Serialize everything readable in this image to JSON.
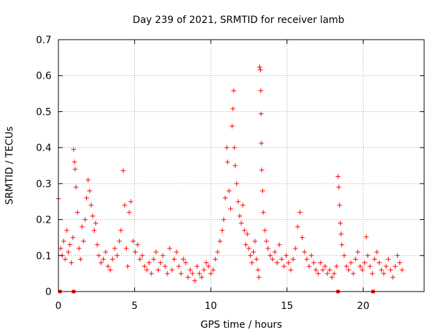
{
  "chart_data": {
    "type": "scatter",
    "title": "Day 239 of 2021, SRMTID for receiver lamb",
    "xlabel": "GPS time / hours",
    "ylabel": "SRMTID / TECUs",
    "xlim": [
      0,
      24
    ],
    "ylim": [
      0,
      0.7
    ],
    "xticks": [
      0,
      5,
      10,
      15,
      20
    ],
    "xtick_labels": [
      "0",
      "5",
      "10",
      "15",
      "20"
    ],
    "yticks": [
      0,
      0.1,
      0.2,
      0.3,
      0.4,
      0.5,
      0.6,
      0.7
    ],
    "ytick_labels": [
      "0",
      "0.1",
      "0.2",
      "0.3",
      "0.4",
      "0.5",
      "0.6",
      "0.7"
    ],
    "grid": true,
    "marker": "+",
    "color": "#ff0000",
    "series": [
      {
        "name": "SRMTID",
        "points": [
          [
            0.0,
            0.258
          ],
          [
            0.15,
            0.12
          ],
          [
            0.25,
            0.1
          ],
          [
            0.35,
            0.14
          ],
          [
            0.45,
            0.09
          ],
          [
            0.55,
            0.17
          ],
          [
            0.65,
            0.11
          ],
          [
            0.75,
            0.13
          ],
          [
            0.85,
            0.08
          ],
          [
            0.95,
            0.15
          ],
          [
            1.0,
            0.395
          ],
          [
            1.05,
            0.36
          ],
          [
            1.1,
            0.34
          ],
          [
            1.15,
            0.29
          ],
          [
            1.25,
            0.22
          ],
          [
            1.35,
            0.12
          ],
          [
            1.45,
            0.09
          ],
          [
            1.55,
            0.18
          ],
          [
            1.65,
            0.14
          ],
          [
            1.75,
            0.2
          ],
          [
            1.85,
            0.26
          ],
          [
            1.95,
            0.31
          ],
          [
            2.05,
            0.28
          ],
          [
            2.15,
            0.24
          ],
          [
            2.25,
            0.21
          ],
          [
            2.35,
            0.17
          ],
          [
            2.45,
            0.19
          ],
          [
            2.55,
            0.13
          ],
          [
            2.65,
            0.1
          ],
          [
            2.8,
            0.08
          ],
          [
            2.95,
            0.09
          ],
          [
            3.1,
            0.11
          ],
          [
            3.25,
            0.07
          ],
          [
            3.4,
            0.06
          ],
          [
            3.55,
            0.09
          ],
          [
            3.7,
            0.12
          ],
          [
            3.85,
            0.1
          ],
          [
            4.0,
            0.14
          ],
          [
            4.1,
            0.17
          ],
          [
            4.25,
            0.336
          ],
          [
            4.35,
            0.24
          ],
          [
            4.45,
            0.12
          ],
          [
            4.55,
            0.07
          ],
          [
            4.65,
            0.22
          ],
          [
            4.75,
            0.25
          ],
          [
            4.9,
            0.14
          ],
          [
            5.05,
            0.11
          ],
          [
            5.2,
            0.13
          ],
          [
            5.35,
            0.09
          ],
          [
            5.5,
            0.1
          ],
          [
            5.65,
            0.07
          ],
          [
            5.8,
            0.06
          ],
          [
            5.95,
            0.08
          ],
          [
            6.1,
            0.05
          ],
          [
            6.25,
            0.09
          ],
          [
            6.4,
            0.11
          ],
          [
            6.55,
            0.06
          ],
          [
            6.7,
            0.08
          ],
          [
            6.85,
            0.1
          ],
          [
            7.0,
            0.07
          ],
          [
            7.15,
            0.05
          ],
          [
            7.3,
            0.12
          ],
          [
            7.45,
            0.06
          ],
          [
            7.6,
            0.09
          ],
          [
            7.75,
            0.11
          ],
          [
            7.9,
            0.07
          ],
          [
            8.05,
            0.05
          ],
          [
            8.2,
            0.09
          ],
          [
            8.35,
            0.08
          ],
          [
            8.5,
            0.04
          ],
          [
            8.65,
            0.06
          ],
          [
            8.8,
            0.05
          ],
          [
            8.95,
            0.03
          ],
          [
            9.1,
            0.07
          ],
          [
            9.25,
            0.05
          ],
          [
            9.4,
            0.04
          ],
          [
            9.55,
            0.06
          ],
          [
            9.7,
            0.08
          ],
          [
            9.85,
            0.07
          ],
          [
            10.0,
            0.05
          ],
          [
            10.15,
            0.06
          ],
          [
            10.3,
            0.09
          ],
          [
            10.45,
            0.11
          ],
          [
            10.6,
            0.14
          ],
          [
            10.75,
            0.17
          ],
          [
            10.85,
            0.2
          ],
          [
            10.95,
            0.26
          ],
          [
            11.05,
            0.4
          ],
          [
            11.1,
            0.36
          ],
          [
            11.2,
            0.28
          ],
          [
            11.3,
            0.23
          ],
          [
            11.4,
            0.46
          ],
          [
            11.45,
            0.508
          ],
          [
            11.5,
            0.558
          ],
          [
            11.55,
            0.4
          ],
          [
            11.6,
            0.35
          ],
          [
            11.7,
            0.3
          ],
          [
            11.8,
            0.25
          ],
          [
            11.9,
            0.21
          ],
          [
            12.0,
            0.19
          ],
          [
            12.1,
            0.24
          ],
          [
            12.2,
            0.17
          ],
          [
            12.3,
            0.13
          ],
          [
            12.4,
            0.16
          ],
          [
            12.5,
            0.12
          ],
          [
            12.6,
            0.1
          ],
          [
            12.7,
            0.08
          ],
          [
            12.8,
            0.11
          ],
          [
            12.9,
            0.14
          ],
          [
            13.0,
            0.09
          ],
          [
            13.1,
            0.06
          ],
          [
            13.15,
            0.04
          ],
          [
            13.2,
            0.624
          ],
          [
            13.25,
            0.616
          ],
          [
            13.28,
            0.558
          ],
          [
            13.3,
            0.494
          ],
          [
            13.32,
            0.412
          ],
          [
            13.35,
            0.338
          ],
          [
            13.4,
            0.28
          ],
          [
            13.45,
            0.22
          ],
          [
            13.55,
            0.17
          ],
          [
            13.65,
            0.14
          ],
          [
            13.75,
            0.12
          ],
          [
            13.9,
            0.1
          ],
          [
            14.05,
            0.09
          ],
          [
            14.2,
            0.11
          ],
          [
            14.35,
            0.08
          ],
          [
            14.5,
            0.13
          ],
          [
            14.65,
            0.09
          ],
          [
            14.8,
            0.07
          ],
          [
            14.95,
            0.1
          ],
          [
            15.1,
            0.08
          ],
          [
            15.25,
            0.06
          ],
          [
            15.4,
            0.09
          ],
          [
            15.55,
            0.12
          ],
          [
            15.7,
            0.18
          ],
          [
            15.85,
            0.22
          ],
          [
            16.0,
            0.15
          ],
          [
            16.15,
            0.11
          ],
          [
            16.3,
            0.09
          ],
          [
            16.45,
            0.07
          ],
          [
            16.6,
            0.1
          ],
          [
            16.75,
            0.08
          ],
          [
            16.9,
            0.06
          ],
          [
            17.05,
            0.05
          ],
          [
            17.2,
            0.08
          ],
          [
            17.35,
            0.06
          ],
          [
            17.5,
            0.07
          ],
          [
            17.65,
            0.05
          ],
          [
            17.8,
            0.06
          ],
          [
            17.95,
            0.04
          ],
          [
            18.1,
            0.05
          ],
          [
            18.25,
            0.07
          ],
          [
            18.35,
            0.32
          ],
          [
            18.4,
            0.29
          ],
          [
            18.45,
            0.24
          ],
          [
            18.5,
            0.19
          ],
          [
            18.55,
            0.16
          ],
          [
            18.6,
            0.13
          ],
          [
            18.75,
            0.1
          ],
          [
            18.9,
            0.07
          ],
          [
            19.05,
            0.06
          ],
          [
            19.2,
            0.08
          ],
          [
            19.35,
            0.05
          ],
          [
            19.5,
            0.09
          ],
          [
            19.65,
            0.11
          ],
          [
            19.8,
            0.07
          ],
          [
            19.95,
            0.06
          ],
          [
            20.1,
            0.08
          ],
          [
            20.2,
            0.152
          ],
          [
            20.3,
            0.1
          ],
          [
            20.45,
            0.07
          ],
          [
            20.6,
            0.05
          ],
          [
            20.75,
            0.09
          ],
          [
            20.9,
            0.11
          ],
          [
            21.05,
            0.08
          ],
          [
            21.2,
            0.06
          ],
          [
            21.35,
            0.05
          ],
          [
            21.5,
            0.07
          ],
          [
            21.65,
            0.09
          ],
          [
            21.8,
            0.06
          ],
          [
            21.95,
            0.04
          ],
          [
            22.1,
            0.07
          ],
          [
            22.25,
            0.1
          ],
          [
            22.4,
            0.08
          ],
          [
            22.55,
            0.06
          ]
        ]
      }
    ],
    "zero_markers_x": [
      0.1,
      1.0,
      18.35,
      20.65
    ]
  }
}
